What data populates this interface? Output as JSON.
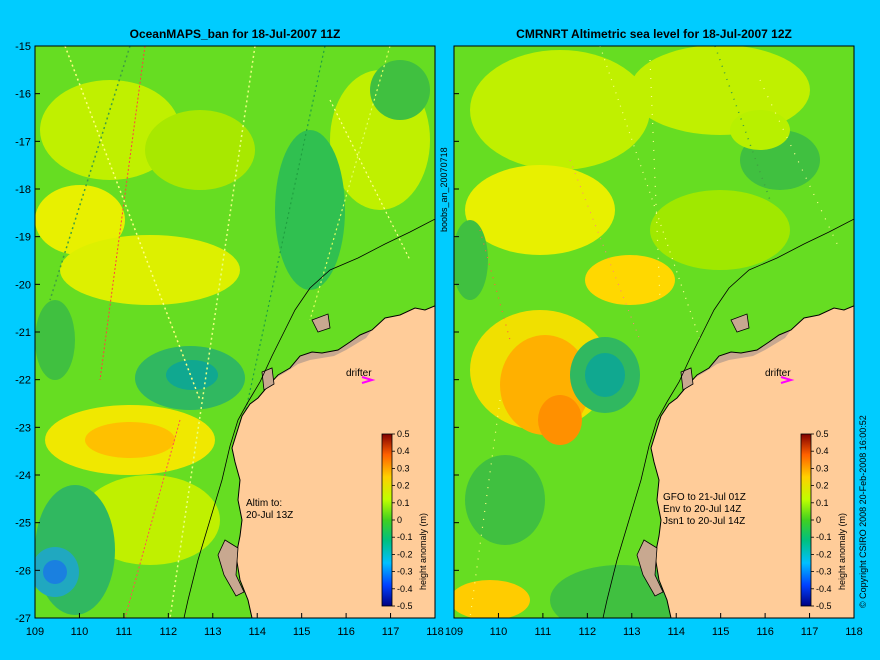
{
  "colors": {
    "background": "#00ccff",
    "land": "#ffcc99",
    "land_shadow": "#c8a890",
    "coast": "#000000",
    "drifter": "#ff00ff"
  },
  "panels": [
    {
      "id": "oceanmaps",
      "title": "OceanMAPS_ban for 18-Jul-2007 11Z",
      "annotation": [
        "Altim to:",
        "20-Jul 13Z"
      ],
      "drifter_label": "drifter"
    },
    {
      "id": "cmrnrt",
      "title": "CMRNRT Altimetric sea level  for 18-Jul-2007 12Z",
      "annotation": [
        "GFO to 21-Jul 01Z",
        "Env to 20-Jul 14Z",
        "Jsn1 to 20-Jul 14Z"
      ],
      "drifter_label": "drifter"
    }
  ],
  "axes": {
    "x_ticks": [
      "109",
      "110",
      "111",
      "112",
      "113",
      "114",
      "115",
      "116",
      "117",
      "118"
    ],
    "y_ticks": [
      "-15",
      "-16",
      "-17",
      "-18",
      "-19",
      "-20",
      "-21",
      "-22",
      "-23",
      "-24",
      "-25",
      "-26",
      "-27"
    ],
    "x_range": [
      109,
      118
    ],
    "y_range": [
      -27,
      -15
    ]
  },
  "colorbar": {
    "label": "height anomaly (m)",
    "ticks": [
      "0.5",
      "0.4",
      "0.3",
      "0.2",
      "0.1",
      "0",
      "-0.1",
      "-0.2",
      "-0.3",
      "-0.4",
      "-0.5"
    ],
    "range": [
      -0.5,
      0.5
    ]
  },
  "side_label_center": "boobs_an_20070718",
  "side_label_right": "© Copyright CSIRO 2008   20-Feb-2008 16:00:52"
}
